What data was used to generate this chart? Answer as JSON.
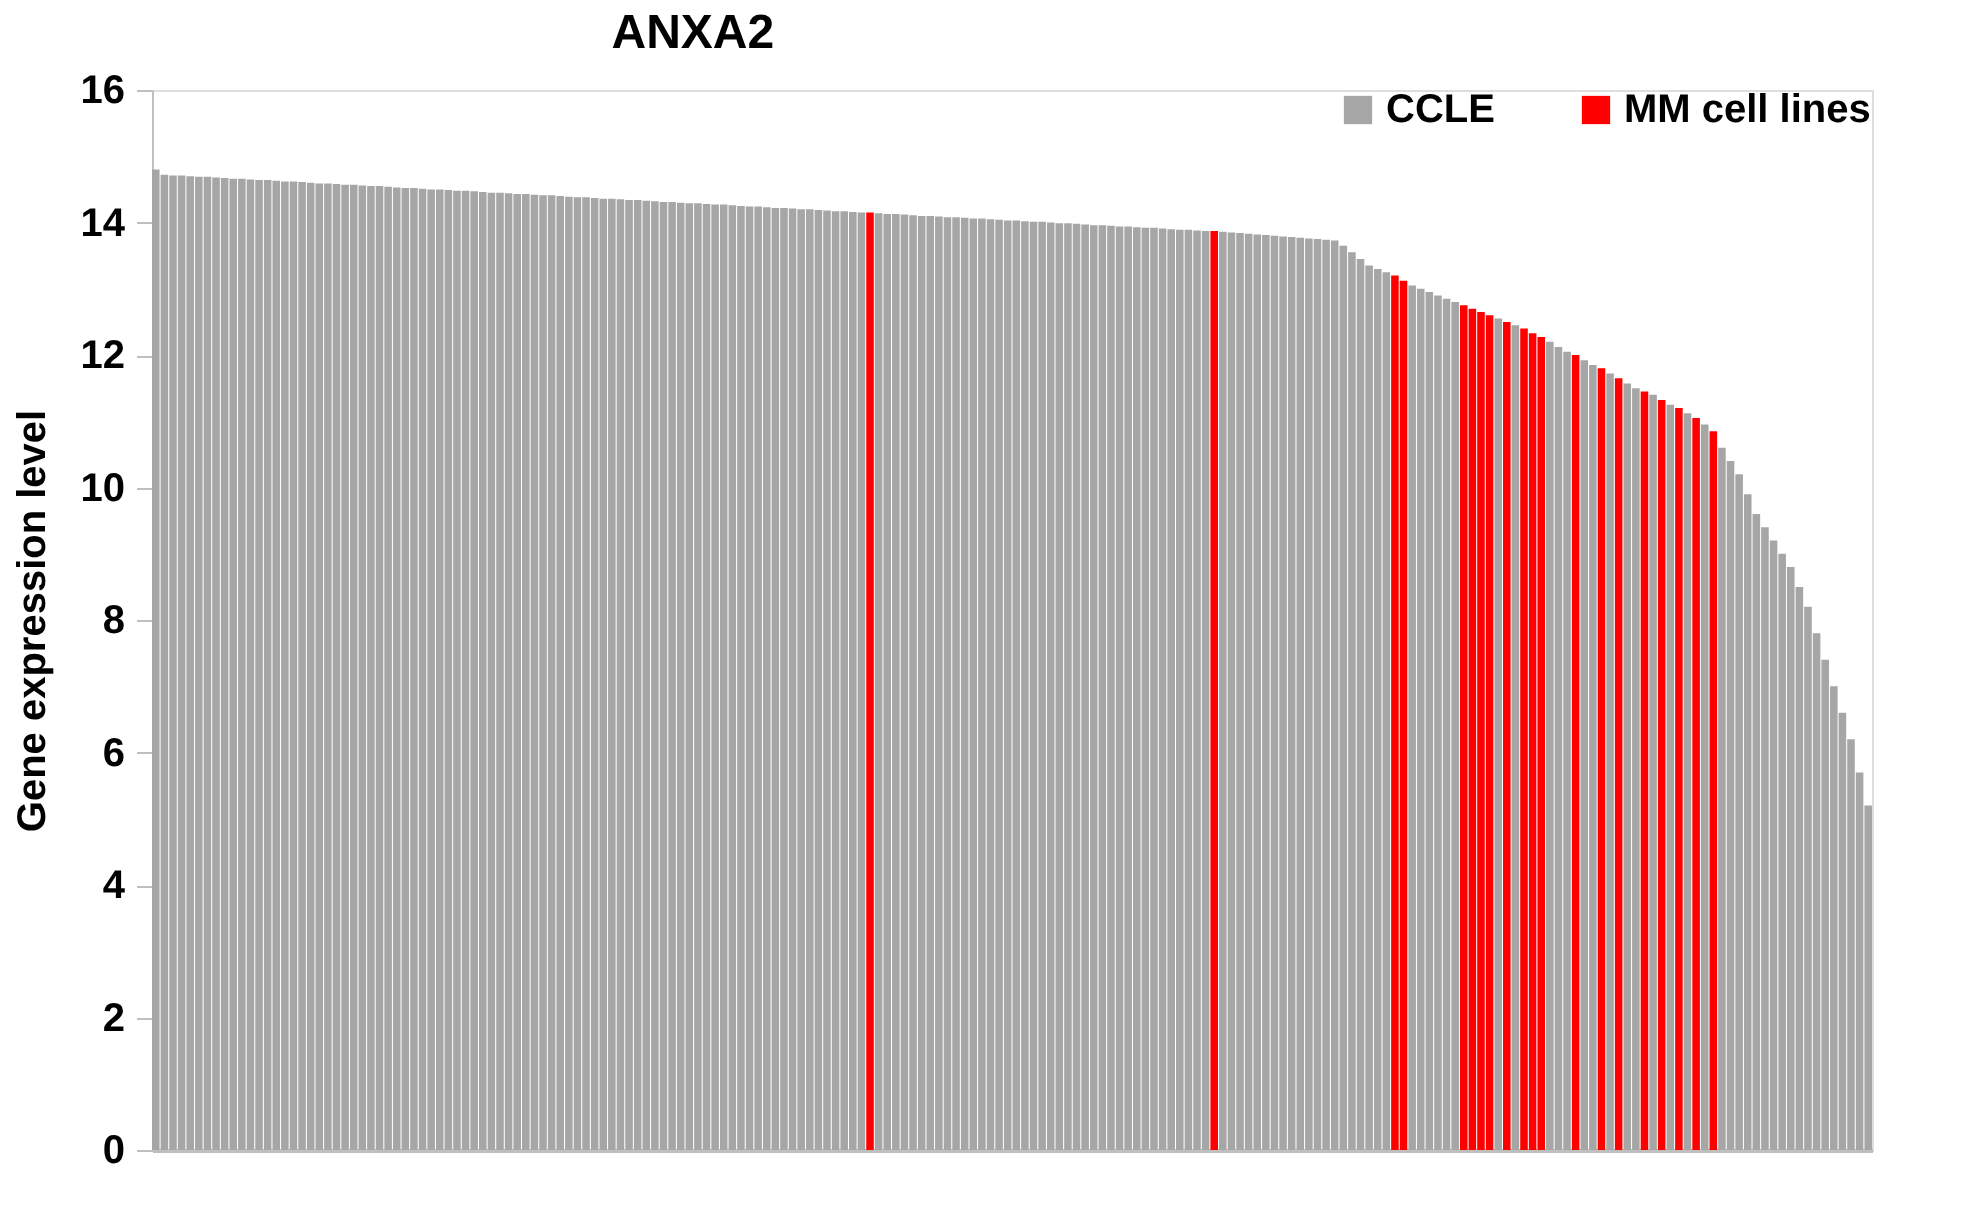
{
  "chart_data": {
    "type": "bar",
    "title": "ANXA2",
    "ylabel": "Gene expression level",
    "categories": [
      null,
      null,
      null,
      null,
      null,
      null,
      null,
      null,
      null,
      null,
      null,
      null,
      null,
      null,
      null,
      null,
      null,
      null,
      null,
      null,
      null,
      null,
      null,
      null,
      null,
      null,
      null,
      null,
      null,
      null,
      null,
      null,
      null,
      null,
      null,
      null,
      null,
      null,
      null,
      null,
      null,
      null,
      null,
      null,
      null,
      null,
      null,
      null,
      null,
      null,
      null,
      null,
      null,
      null,
      null,
      null,
      null,
      null,
      null,
      null,
      null,
      null,
      null,
      null,
      null,
      null,
      null,
      null,
      null,
      null,
      null,
      null,
      null,
      null,
      null,
      null,
      null,
      null,
      null,
      null,
      null,
      null,
      null,
      null,
      null,
      null,
      null,
      null,
      null,
      null,
      null,
      null,
      null,
      null,
      null,
      null,
      null,
      null,
      null,
      null,
      null,
      null,
      null,
      null,
      null,
      null,
      null,
      null,
      null,
      null,
      null,
      null,
      null,
      null,
      null,
      null,
      null,
      null,
      null,
      null,
      null,
      null,
      null,
      null,
      null,
      null,
      null,
      null,
      null,
      null,
      null,
      null,
      null,
      null,
      null,
      null,
      null,
      null,
      null,
      null,
      null,
      null,
      null,
      null,
      null,
      null,
      null,
      null,
      null,
      null,
      null,
      null,
      null,
      null,
      null,
      null,
      null,
      null,
      null,
      null,
      null,
      null,
      null,
      null,
      null,
      null,
      null,
      null,
      null,
      null,
      null,
      null,
      null,
      null,
      null,
      null,
      null,
      null,
      null,
      null,
      null,
      null,
      null,
      null,
      null,
      null,
      null,
      null,
      null,
      null,
      null,
      null,
      null,
      null,
      null,
      null,
      null,
      null,
      null,
      null
    ],
    "series": [
      {
        "name": "CCLE",
        "color": "#a6a6a6",
        "values": [
          14.8,
          14.72,
          14.71,
          14.71,
          14.7,
          14.69,
          14.69,
          14.68,
          14.67,
          14.66,
          14.66,
          14.65,
          14.64,
          14.64,
          14.63,
          14.62,
          14.62,
          14.61,
          14.6,
          14.59,
          14.59,
          14.58,
          14.57,
          14.57,
          14.56,
          14.55,
          14.55,
          14.54,
          14.53,
          14.52,
          14.52,
          14.51,
          14.5,
          14.5,
          14.49,
          14.48,
          14.48,
          14.47,
          14.46,
          14.45,
          14.45,
          14.44,
          14.43,
          14.43,
          14.42,
          14.41,
          14.41,
          14.4,
          14.39,
          14.38,
          14.38,
          14.37,
          14.36,
          14.36,
          14.35,
          14.34,
          14.34,
          14.33,
          14.32,
          14.31,
          14.31,
          14.3,
          14.29,
          14.29,
          14.28,
          14.27,
          14.27,
          14.26,
          14.25,
          14.24,
          14.24,
          14.23,
          14.22,
          14.22,
          14.21,
          14.2,
          14.2,
          14.19,
          14.18,
          14.17,
          14.17,
          14.16,
          14.15,
          null,
          14.14,
          14.13,
          14.13,
          14.12,
          14.11,
          14.1,
          14.1,
          14.09,
          14.08,
          14.08,
          14.07,
          14.06,
          14.06,
          14.05,
          14.04,
          14.03,
          14.03,
          14.02,
          14.01,
          14.01,
          14.0,
          13.99,
          13.99,
          13.98,
          13.97,
          13.96,
          13.96,
          13.95,
          13.94,
          13.94,
          13.93,
          13.92,
          13.92,
          13.91,
          13.9,
          13.89,
          13.89,
          13.88,
          13.87,
          null,
          13.86,
          13.85,
          13.84,
          13.83,
          13.82,
          13.81,
          13.8,
          13.79,
          13.78,
          13.77,
          13.76,
          13.75,
          13.74,
          13.73,
          13.65,
          13.55,
          13.45,
          13.35,
          13.3,
          13.25,
          null,
          null,
          13.05,
          13.0,
          12.95,
          12.9,
          12.85,
          12.8,
          null,
          null,
          null,
          null,
          12.55,
          null,
          12.45,
          null,
          null,
          null,
          12.2,
          12.12,
          12.05,
          null,
          11.92,
          11.85,
          null,
          11.72,
          null,
          11.57,
          11.5,
          null,
          11.4,
          null,
          11.25,
          null,
          11.12,
          null,
          10.95,
          null,
          10.6,
          10.4,
          10.2,
          9.9,
          9.6,
          9.4,
          9.2,
          9.0,
          8.8,
          8.5,
          8.2,
          7.8,
          7.4,
          7.0,
          6.6,
          6.2,
          5.7,
          5.2
        ]
      },
      {
        "name": "MM cell lines",
        "color": "#ff0000",
        "values": [
          null,
          null,
          null,
          null,
          null,
          null,
          null,
          null,
          null,
          null,
          null,
          null,
          null,
          null,
          null,
          null,
          null,
          null,
          null,
          null,
          null,
          null,
          null,
          null,
          null,
          null,
          null,
          null,
          null,
          null,
          null,
          null,
          null,
          null,
          null,
          null,
          null,
          null,
          null,
          null,
          null,
          null,
          null,
          null,
          null,
          null,
          null,
          null,
          null,
          null,
          null,
          null,
          null,
          null,
          null,
          null,
          null,
          null,
          null,
          null,
          null,
          null,
          null,
          null,
          null,
          null,
          null,
          null,
          null,
          null,
          null,
          null,
          null,
          null,
          null,
          null,
          null,
          null,
          null,
          null,
          null,
          null,
          null,
          14.15,
          null,
          null,
          null,
          null,
          null,
          null,
          null,
          null,
          null,
          null,
          null,
          null,
          null,
          null,
          null,
          null,
          null,
          null,
          null,
          null,
          null,
          null,
          null,
          null,
          null,
          null,
          null,
          null,
          null,
          null,
          null,
          null,
          null,
          null,
          null,
          null,
          null,
          null,
          null,
          13.87,
          null,
          null,
          null,
          null,
          null,
          null,
          null,
          null,
          null,
          null,
          null,
          null,
          null,
          null,
          null,
          null,
          null,
          null,
          null,
          null,
          13.2,
          13.12,
          null,
          null,
          null,
          null,
          null,
          null,
          12.75,
          12.7,
          12.65,
          12.6,
          null,
          12.5,
          null,
          12.4,
          12.33,
          12.27,
          null,
          null,
          null,
          12.0,
          null,
          null,
          11.8,
          null,
          11.65,
          null,
          null,
          11.45,
          null,
          11.32,
          null,
          11.2,
          null,
          11.05,
          null,
          10.85,
          null,
          null,
          null,
          null,
          null,
          null,
          null,
          null,
          null,
          null,
          null,
          null,
          null,
          null,
          null,
          null,
          null,
          null
        ]
      }
    ],
    "ylim": [
      0,
      16
    ],
    "yticks": [
      0,
      2,
      4,
      6,
      8,
      10,
      12,
      14,
      16
    ],
    "grid": false,
    "legend": "top right",
    "tick_labels": "y"
  }
}
